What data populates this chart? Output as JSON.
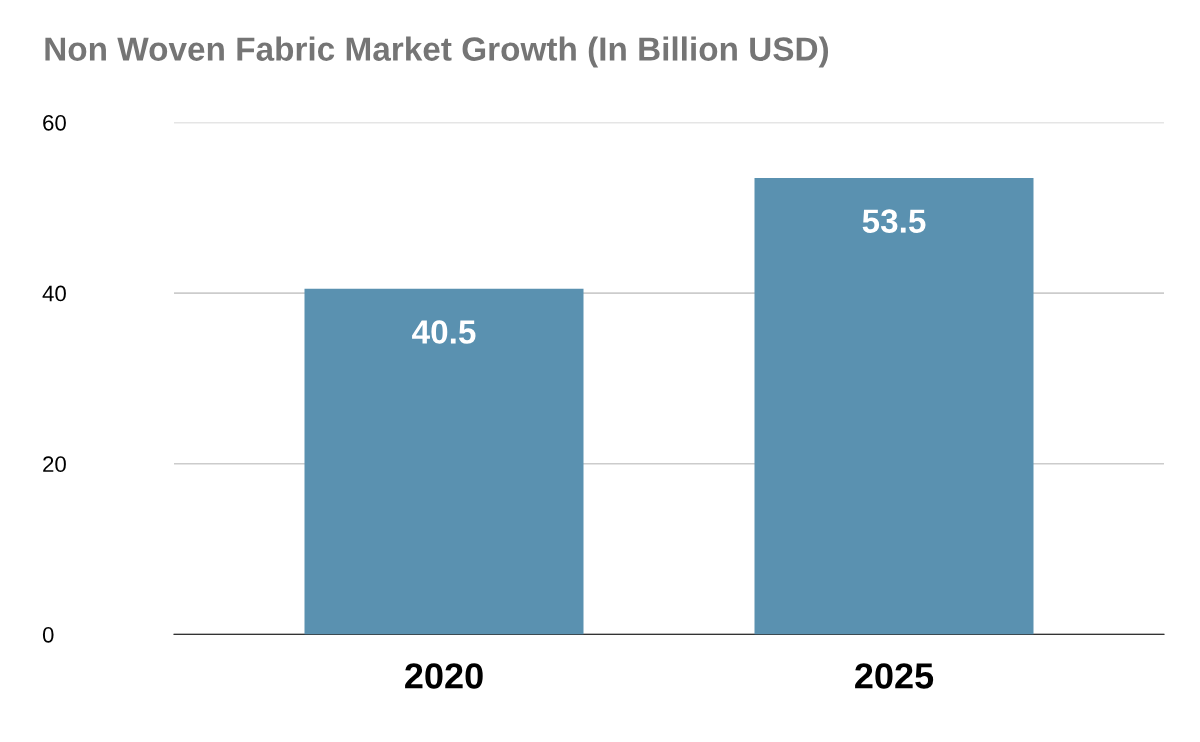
{
  "chart_data": {
    "type": "bar",
    "title": "Non Woven Fabric Market Growth (In Billion USD)",
    "categories": [
      "2020",
      "2025"
    ],
    "values": [
      40.5,
      53.5
    ],
    "color": "#5a91b0",
    "data_labels": true,
    "ylim": [
      0,
      60
    ],
    "yticks": [
      0,
      20,
      40,
      60
    ],
    "grid": "y"
  }
}
